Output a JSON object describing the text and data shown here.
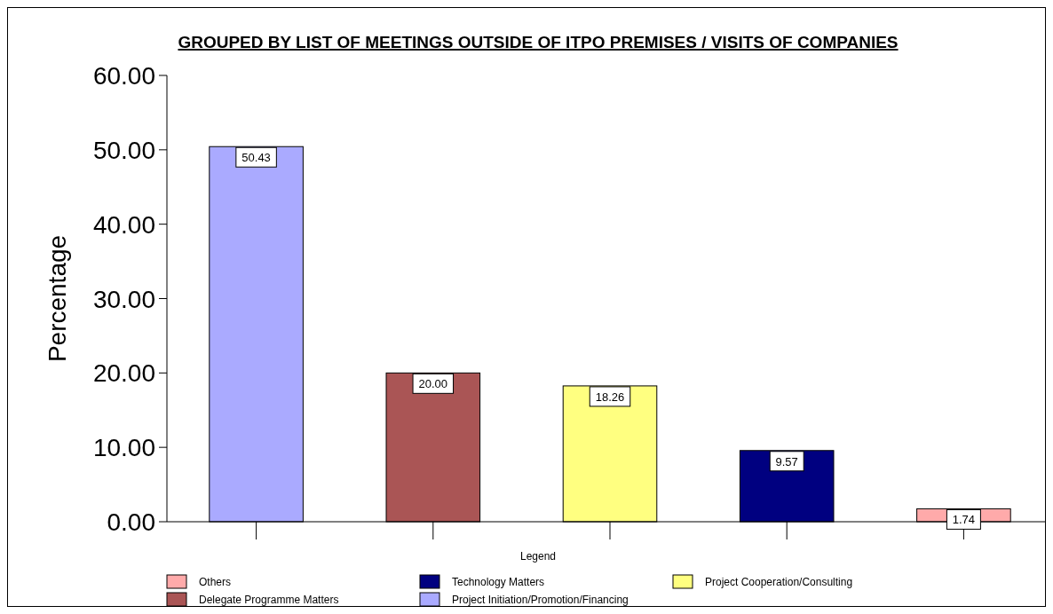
{
  "chart_data": {
    "type": "bar",
    "title": "GROUPED BY LIST OF MEETINGS OUTSIDE OF ITPO PREMISES / VISITS OF COMPANIES",
    "ylabel": "Percentage",
    "legend_title": "Legend",
    "categories": [
      null,
      null,
      null,
      null,
      null
    ],
    "stacked": true,
    "series": [
      {
        "name": "Project Initiation/Promotion/Financing",
        "color": "#aaaaff",
        "values": [
          50.43,
          null,
          null,
          null,
          null
        ],
        "value_labels": [
          "50.43",
          null,
          null,
          null,
          null
        ]
      },
      {
        "name": "Delegate Programme Matters",
        "color": "#aa5555",
        "values": [
          null,
          20.0,
          null,
          null,
          null
        ],
        "value_labels": [
          null,
          "20.00",
          null,
          null,
          null
        ]
      },
      {
        "name": "Project Cooperation/Consulting",
        "color": "#ffff80",
        "values": [
          null,
          null,
          18.26,
          null,
          null
        ],
        "value_labels": [
          null,
          null,
          "18.26",
          null,
          null
        ]
      },
      {
        "name": "Technology Matters",
        "color": "#000080",
        "values": [
          null,
          null,
          null,
          9.57,
          null
        ],
        "value_labels": [
          null,
          null,
          null,
          "9.57",
          null
        ]
      },
      {
        "name": "Others",
        "color": "#ffaaaa",
        "values": [
          null,
          null,
          null,
          null,
          1.74
        ],
        "value_labels": [
          null,
          null,
          null,
          null,
          "1.74"
        ]
      }
    ],
    "ylim": [
      0,
      60
    ],
    "yticks": [
      {
        "value": 0,
        "label": "0.00"
      },
      {
        "value": 10,
        "label": "10.00"
      },
      {
        "value": 20,
        "label": "20.00"
      },
      {
        "value": 30,
        "label": "30.00"
      },
      {
        "value": 40,
        "label": "40.00"
      },
      {
        "value": 50,
        "label": "50.00"
      },
      {
        "value": 60,
        "label": "60.00"
      }
    ],
    "legend": "bottom"
  }
}
